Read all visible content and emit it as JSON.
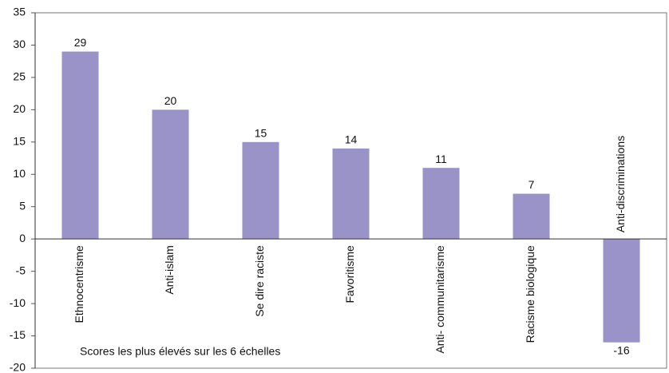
{
  "chart_data": {
    "type": "bar",
    "categories": [
      "Ethnocentrisme",
      "Anti-islam",
      "Se dire raciste",
      "Favoritisme",
      "Anti- communitarisme",
      "Racisme biologique",
      "Anti-discriminations"
    ],
    "values": [
      29,
      20,
      15,
      14,
      11,
      7,
      -16
    ],
    "color": "#9a93c8",
    "ylim": [
      -20,
      35
    ],
    "yticks": [
      -20,
      -15,
      -10,
      -5,
      0,
      5,
      10,
      15,
      20,
      25,
      30,
      35
    ],
    "grid": false,
    "annotation": "Scores les plus élevés sur les 6 échelles"
  }
}
